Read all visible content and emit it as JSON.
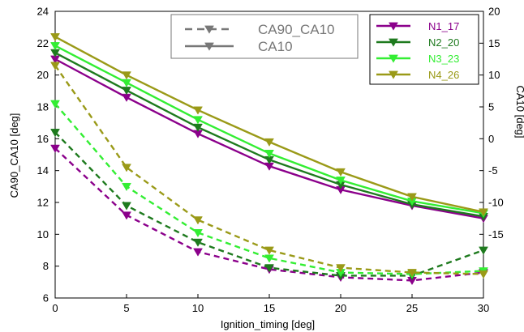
{
  "chart_data": {
    "type": "line",
    "xlabel": "Ignition_timing [deg]",
    "ylabel_left": "CA90_CA10 [deg]",
    "ylabel_right": "CA10 [deg]",
    "x": [
      0,
      5,
      10,
      15,
      20,
      25,
      30
    ],
    "x_ticks": [
      "0",
      "5",
      "10",
      "15",
      "20",
      "25",
      "30"
    ],
    "xlim": [
      0,
      30
    ],
    "ylim_left": [
      6,
      24
    ],
    "y_ticks_left": [
      "6",
      "8",
      "10",
      "12",
      "14",
      "16",
      "18",
      "20",
      "22",
      "24"
    ],
    "ylim_right": [
      -25,
      20
    ],
    "y_ticks_right": [
      "20",
      "15",
      "10",
      "5",
      "0",
      "-5",
      "-10",
      "-15"
    ],
    "grid": false,
    "style_legend": {
      "position": "top-center",
      "entries": [
        {
          "label": "CA90_CA10",
          "style": "dashed"
        },
        {
          "label": "CA10",
          "style": "solid"
        }
      ]
    },
    "series_legend": {
      "position": "top-right"
    },
    "series": [
      {
        "name": "N1_17",
        "color": "#8B008B",
        "ca10": [
          12.5,
          6.5,
          0.8,
          -4.3,
          -8.0,
          -10.5,
          -12.5
        ],
        "ca90_ca10": [
          15.4,
          11.2,
          8.9,
          7.8,
          7.3,
          7.1,
          7.6
        ]
      },
      {
        "name": "N2_20",
        "color": "#1E7A1E",
        "ca10": [
          13.5,
          7.6,
          1.8,
          -3.3,
          -7.2,
          -10.3,
          -12.2
        ],
        "ca90_ca10": [
          16.4,
          11.8,
          9.5,
          7.9,
          7.4,
          7.4,
          9.0
        ]
      },
      {
        "name": "N3_23",
        "color": "#33EE33",
        "ca10": [
          14.6,
          8.8,
          3.0,
          -2.3,
          -6.5,
          -9.8,
          -11.7
        ],
        "ca90_ca10": [
          18.2,
          13.0,
          10.1,
          8.5,
          7.6,
          7.5,
          7.7
        ]
      },
      {
        "name": "N4_26",
        "color": "#9A9A18",
        "ca10": [
          16.0,
          10.0,
          4.5,
          -0.5,
          -5.2,
          -9.1,
          -11.5
        ],
        "ca90_ca10": [
          20.6,
          14.2,
          10.9,
          9.0,
          7.9,
          7.6,
          7.5
        ]
      }
    ]
  }
}
